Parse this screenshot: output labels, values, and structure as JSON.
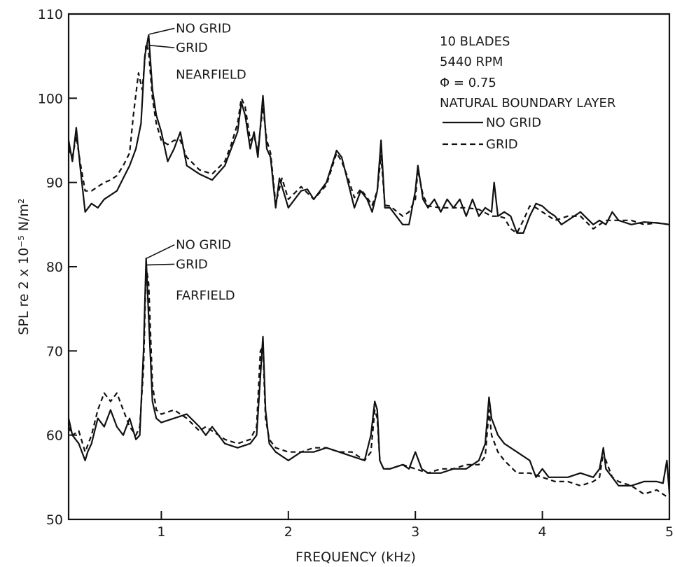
{
  "chart_data": {
    "type": "line",
    "xlabel": "FREQUENCY (kHz)",
    "ylabel": "SPL re 2 x 10⁻⁵ N/m²",
    "xlim": [
      0.27,
      5.0
    ],
    "ylim": [
      50,
      110
    ],
    "x_ticks": [
      {
        "value": 1,
        "label": "1"
      },
      {
        "value": 2,
        "label": "2"
      },
      {
        "value": 3,
        "label": "3"
      },
      {
        "value": 4,
        "label": "4"
      },
      {
        "value": 5,
        "label": "5"
      }
    ],
    "y_ticks": [
      {
        "value": 50,
        "label": "50"
      },
      {
        "value": 60,
        "label": "60"
      },
      {
        "value": 70,
        "label": "70"
      },
      {
        "value": 80,
        "label": "80"
      },
      {
        "value": 90,
        "label": "90"
      },
      {
        "value": 100,
        "label": "100"
      },
      {
        "value": 110,
        "label": "110"
      }
    ],
    "grid": false,
    "legend": {
      "placement": "top-right",
      "lines": [
        "10 BLADES",
        "5440 RPM",
        "Φ = 0.75",
        "NATURAL BOUNDARY LAYER"
      ],
      "entries": [
        {
          "label": "NO GRID",
          "style": "solid"
        },
        {
          "label": "GRID",
          "style": "dashed"
        }
      ]
    },
    "annotations": [
      {
        "text": "NO GRID",
        "x": 0.96,
        "y": 108.3
      },
      {
        "text": "GRID",
        "x": 0.96,
        "y": 106.0
      },
      {
        "text": "NEARFIELD",
        "x": 0.96,
        "y": 102.8
      },
      {
        "text": "NO GRID",
        "x": 0.96,
        "y": 82.6
      },
      {
        "text": "GRID",
        "x": 0.96,
        "y": 80.3
      },
      {
        "text": "FARFIELD",
        "x": 0.96,
        "y": 76.6
      }
    ],
    "groups": [
      {
        "label": "NEARFIELD",
        "series": [
          {
            "name": "NO GRID",
            "style": "solid",
            "x": [
              0.27,
              0.3,
              0.33,
              0.36,
              0.4,
              0.45,
              0.5,
              0.55,
              0.6,
              0.65,
              0.7,
              0.75,
              0.8,
              0.84,
              0.87,
              0.9,
              0.93,
              0.96,
              1.0,
              1.05,
              1.1,
              1.15,
              1.2,
              1.3,
              1.4,
              1.5,
              1.55,
              1.6,
              1.63,
              1.66,
              1.7,
              1.73,
              1.76,
              1.8,
              1.83,
              1.86,
              1.9,
              1.93,
              1.96,
              2.0,
              2.05,
              2.1,
              2.15,
              2.2,
              2.3,
              2.38,
              2.42,
              2.47,
              2.52,
              2.57,
              2.62,
              2.66,
              2.7,
              2.73,
              2.76,
              2.8,
              2.85,
              2.9,
              2.95,
              3.0,
              3.02,
              3.06,
              3.1,
              3.15,
              3.2,
              3.25,
              3.3,
              3.35,
              3.4,
              3.45,
              3.5,
              3.55,
              3.6,
              3.62,
              3.65,
              3.7,
              3.75,
              3.8,
              3.85,
              3.9,
              3.95,
              4.0,
              4.05,
              4.1,
              4.15,
              4.2,
              4.3,
              4.4,
              4.45,
              4.5,
              4.55,
              4.6,
              4.7,
              4.8,
              4.9,
              5.0
            ],
            "y": [
              95,
              92.5,
              96.5,
              92,
              86.5,
              87.5,
              87,
              88,
              88.5,
              89,
              90.5,
              92,
              94,
              97,
              105,
              107.5,
              101,
              98,
              96,
              92.5,
              94,
              96,
              92,
              91,
              90.3,
              92,
              94,
              96,
              99.5,
              98,
              94,
              96,
              93,
              100.3,
              94,
              93,
              87,
              90.5,
              89,
              87,
              88,
              89,
              89.2,
              88,
              90,
              93.8,
              93,
              90,
              87,
              89,
              88,
              86.5,
              89,
              95,
              87,
              87,
              86,
              85,
              85,
              89,
              92,
              88,
              87,
              88,
              86.5,
              88,
              87,
              88,
              86,
              88,
              86,
              87,
              86.5,
              90,
              86,
              86.5,
              86,
              84,
              84,
              86,
              87.5,
              87.2,
              86.5,
              86,
              85,
              85.5,
              86.5,
              85,
              85.5,
              85,
              86.5,
              85.5,
              85,
              85.3,
              85.2,
              85
            ]
          },
          {
            "name": "GRID",
            "style": "dashed",
            "x": [
              0.27,
              0.3,
              0.33,
              0.36,
              0.4,
              0.45,
              0.5,
              0.55,
              0.6,
              0.65,
              0.7,
              0.75,
              0.78,
              0.82,
              0.85,
              0.88,
              0.9,
              0.93,
              0.96,
              1.0,
              1.05,
              1.1,
              1.15,
              1.2,
              1.3,
              1.4,
              1.5,
              1.55,
              1.6,
              1.63,
              1.66,
              1.7,
              1.73,
              1.76,
              1.8,
              1.83,
              1.86,
              1.9,
              1.95,
              2.0,
              2.1,
              2.2,
              2.3,
              2.38,
              2.42,
              2.47,
              2.52,
              2.57,
              2.62,
              2.66,
              2.7,
              2.73,
              2.76,
              2.8,
              2.9,
              2.95,
              3.0,
              3.02,
              3.06,
              3.1,
              3.2,
              3.3,
              3.4,
              3.5,
              3.6,
              3.65,
              3.7,
              3.75,
              3.8,
              3.85,
              3.9,
              3.95,
              4.0,
              4.05,
              4.1,
              4.2,
              4.3,
              4.4,
              4.5,
              4.55,
              4.6,
              4.7,
              4.8,
              4.9,
              5.0
            ],
            "y": [
              94,
              93,
              95.5,
              92.5,
              89,
              89,
              89.5,
              90,
              90.3,
              90.8,
              92,
              93.5,
              98,
              103,
              101,
              106.5,
              105.5,
              100,
              97,
              95,
              94.5,
              95,
              95,
              93,
              91.5,
              91,
              92.5,
              94.5,
              97,
              100,
              99,
              95,
              95.5,
              93.8,
              99,
              95,
              93.5,
              87.5,
              90.5,
              88,
              89.5,
              88,
              89.7,
              93.5,
              92.5,
              90.5,
              88.2,
              89.2,
              88.2,
              87.3,
              89,
              93.2,
              87.3,
              87.2,
              86,
              86.5,
              88,
              91.5,
              88.5,
              87.2,
              87,
              87,
              87,
              86.8,
              86,
              86,
              85.8,
              84.5,
              84,
              85.5,
              87.2,
              87,
              86.5,
              86,
              85.5,
              86,
              86,
              84.5,
              85.5,
              85.5,
              85.5,
              85.5,
              85,
              85.2,
              85
            ]
          }
        ]
      },
      {
        "label": "FARFIELD",
        "series": [
          {
            "name": "NO GRID",
            "style": "solid",
            "x": [
              0.27,
              0.3,
              0.35,
              0.4,
              0.42,
              0.45,
              0.5,
              0.55,
              0.6,
              0.65,
              0.7,
              0.75,
              0.8,
              0.83,
              0.86,
              0.88,
              0.9,
              0.93,
              0.96,
              1.0,
              1.1,
              1.2,
              1.3,
              1.35,
              1.4,
              1.5,
              1.6,
              1.7,
              1.75,
              1.78,
              1.8,
              1.82,
              1.85,
              1.9,
              2.0,
              2.1,
              2.2,
              2.3,
              2.4,
              2.5,
              2.6,
              2.65,
              2.68,
              2.7,
              2.72,
              2.75,
              2.8,
              2.9,
              2.95,
              3.0,
              3.05,
              3.1,
              3.2,
              3.3,
              3.4,
              3.5,
              3.55,
              3.58,
              3.6,
              3.65,
              3.7,
              3.8,
              3.9,
              3.95,
              4.0,
              4.05,
              4.1,
              4.2,
              4.3,
              4.4,
              4.45,
              4.48,
              4.5,
              4.55,
              4.6,
              4.7,
              4.8,
              4.9,
              4.95,
              4.98,
              5.0
            ],
            "y": [
              62,
              60,
              59,
              57,
              58,
              59,
              62,
              61,
              63,
              61,
              60,
              62,
              59.5,
              60,
              70,
              81,
              74,
              64,
              62,
              61.5,
              62,
              62.5,
              61,
              60,
              61,
              59,
              58.5,
              59,
              60,
              67,
              71.7,
              63,
              59,
              58,
              57,
              58,
              58,
              58.5,
              58,
              57.5,
              57,
              60,
              64,
              63,
              57,
              56,
              56,
              56.5,
              56,
              58,
              56,
              55.5,
              55.5,
              56,
              56,
              57,
              59,
              64.5,
              62,
              60,
              59,
              58,
              57,
              55,
              56,
              55,
              55,
              55,
              55.5,
              55,
              56,
              58.5,
              56,
              55,
              54,
              54,
              54.5,
              54.5,
              54.3,
              57,
              53
            ]
          },
          {
            "name": "GRID",
            "style": "dashed",
            "x": [
              0.27,
              0.3,
              0.35,
              0.4,
              0.45,
              0.5,
              0.55,
              0.6,
              0.65,
              0.7,
              0.75,
              0.8,
              0.83,
              0.86,
              0.88,
              0.9,
              0.93,
              0.96,
              1.0,
              1.1,
              1.2,
              1.3,
              1.35,
              1.4,
              1.5,
              1.6,
              1.7,
              1.75,
              1.78,
              1.8,
              1.82,
              1.85,
              1.9,
              2.0,
              2.1,
              2.2,
              2.3,
              2.4,
              2.5,
              2.6,
              2.65,
              2.68,
              2.7,
              2.72,
              2.75,
              2.8,
              2.9,
              3.0,
              3.1,
              3.2,
              3.3,
              3.4,
              3.5,
              3.55,
              3.58,
              3.6,
              3.65,
              3.7,
              3.8,
              3.9,
              4.0,
              4.1,
              4.2,
              4.3,
              4.4,
              4.45,
              4.48,
              4.5,
              4.55,
              4.6,
              4.7,
              4.8,
              4.9,
              4.95,
              5.0
            ],
            "y": [
              61,
              60,
              60.5,
              58,
              60,
              63,
              65,
              64,
              65,
              63,
              61,
              60,
              61,
              68,
              80,
              78,
              66,
              63,
              62.5,
              63,
              62,
              60.5,
              61,
              60.5,
              59.5,
              59,
              59.5,
              61,
              70,
              70.5,
              62,
              59.5,
              58.5,
              58,
              58,
              58.5,
              58.5,
              58,
              58,
              57,
              58,
              63,
              62,
              57,
              56,
              56,
              56.5,
              56,
              55.5,
              56,
              56,
              56.5,
              56.5,
              57.5,
              63,
              60,
              58,
              57,
              55.5,
              55.5,
              55,
              54.5,
              54.5,
              54,
              54.5,
              55,
              58,
              57,
              55,
              54.5,
              54,
              53,
              53.5,
              53,
              52.5
            ]
          }
        ]
      }
    ]
  }
}
